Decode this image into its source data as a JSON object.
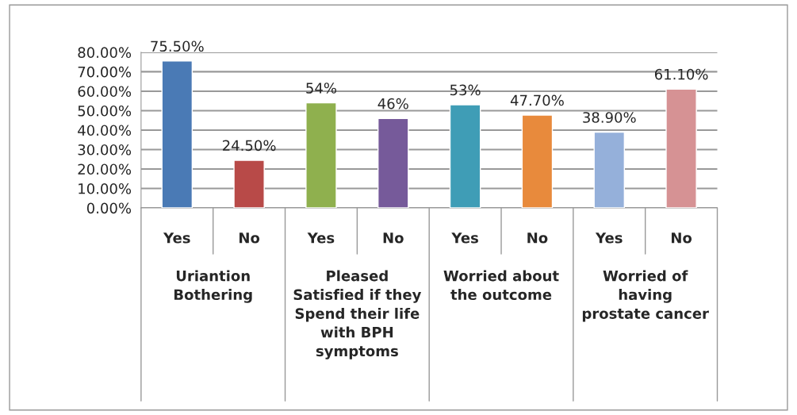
{
  "chart_data": {
    "type": "bar",
    "categories": [
      "Yes",
      "No",
      "Yes",
      "No",
      "Yes",
      "No",
      "Yes",
      "No"
    ],
    "values": [
      75.5,
      24.5,
      54,
      46,
      53,
      47.7,
      38.9,
      61.1
    ],
    "colors": [
      "#4a7ab5",
      "#b84a48",
      "#8fb04e",
      "#765a9a",
      "#3f9db6",
      "#e88a3c",
      "#95b0da",
      "#d69294"
    ],
    "value_labels": [
      "75.50%",
      "24.50%",
      "54%",
      "46%",
      "53%",
      "47.70%",
      "38.90%",
      "61.10%"
    ],
    "annotations": [
      "Uriantion\nBothering",
      "Pleased\nSatisfied if they\nSpend their life\nwith BPH\nsymptoms",
      "Worried about\nthe outcome",
      "Worried of\nhaving\nprostate cancer"
    ],
    "ylim": [
      0,
      80
    ],
    "yticks": [
      {
        "value": 0,
        "label": "0.00%"
      },
      {
        "value": 10,
        "label": "10.00%"
      },
      {
        "value": 20,
        "label": "20.00%"
      },
      {
        "value": 30,
        "label": "30.00%"
      },
      {
        "value": 40,
        "label": "40.00%"
      },
      {
        "value": 50,
        "label": "50.00%"
      },
      {
        "value": 60,
        "label": "60.00%"
      },
      {
        "value": 70,
        "label": "70.00%"
      },
      {
        "value": 80,
        "label": "80.00%"
      }
    ],
    "grid": "y"
  }
}
